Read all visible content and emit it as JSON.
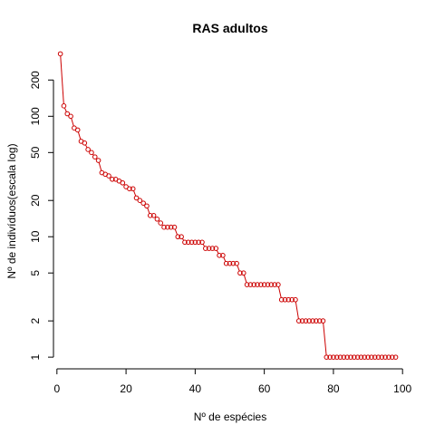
{
  "chart_data": {
    "type": "scatter",
    "title": "RAS adultos",
    "xlabel": "Nº de espécies",
    "ylabel": "Nº de indivíduos(escala log)",
    "y_scale": "log",
    "xlim": [
      -1,
      101
    ],
    "ylim": [
      0.8,
      350
    ],
    "x_ticks": [
      0,
      20,
      40,
      60,
      80,
      100
    ],
    "y_ticks": [
      1,
      2,
      5,
      10,
      20,
      50,
      100,
      200
    ],
    "x_tick_labels": [
      "0",
      "20",
      "40",
      "60",
      "80",
      "100"
    ],
    "y_tick_labels": [
      "1",
      "2",
      "5",
      "10",
      "20",
      "50",
      "100",
      "200"
    ],
    "grid": false,
    "marker_color": "#cc0000",
    "line_color": "#cc0000",
    "series": [
      {
        "x": [
          1,
          2,
          3,
          4,
          5,
          6,
          7,
          8,
          9,
          10,
          11,
          12,
          13,
          14,
          15,
          16,
          17,
          18,
          19,
          20,
          21,
          22,
          23,
          24,
          25,
          26,
          27,
          28,
          29,
          30,
          31,
          32,
          33,
          34,
          35,
          36,
          37,
          38,
          39,
          40,
          41,
          42,
          43,
          44,
          45,
          46,
          47,
          48,
          49,
          50,
          51,
          52,
          53,
          54,
          55,
          56,
          57,
          58,
          59,
          60,
          61,
          62,
          63,
          64,
          65,
          66,
          67,
          68,
          69,
          70,
          71,
          72,
          73,
          74,
          75,
          76,
          77,
          78,
          79,
          80,
          81,
          82,
          83,
          84,
          85,
          86,
          87,
          88,
          89,
          90,
          91,
          92,
          93,
          94,
          95,
          96,
          97,
          98
        ],
        "y": [
          330,
          122,
          105,
          100,
          80,
          77,
          62,
          60,
          53,
          50,
          46,
          43,
          34,
          33,
          32,
          30,
          30,
          29,
          28,
          26,
          25,
          25,
          21,
          20,
          19,
          18,
          15,
          15,
          14,
          13,
          12,
          12,
          12,
          12,
          10,
          10,
          9,
          9,
          9,
          9,
          9,
          9,
          8,
          8,
          8,
          8,
          7,
          7,
          6,
          6,
          6,
          6,
          5,
          5,
          4,
          4,
          4,
          4,
          4,
          4,
          4,
          4,
          4,
          4,
          3,
          3,
          3,
          3,
          3,
          2,
          2,
          2,
          2,
          2,
          2,
          2,
          2,
          1,
          1,
          1,
          1,
          1,
          1,
          1,
          1,
          1,
          1,
          1,
          1,
          1,
          1,
          1,
          1,
          1,
          1,
          1,
          1,
          1
        ]
      }
    ]
  }
}
